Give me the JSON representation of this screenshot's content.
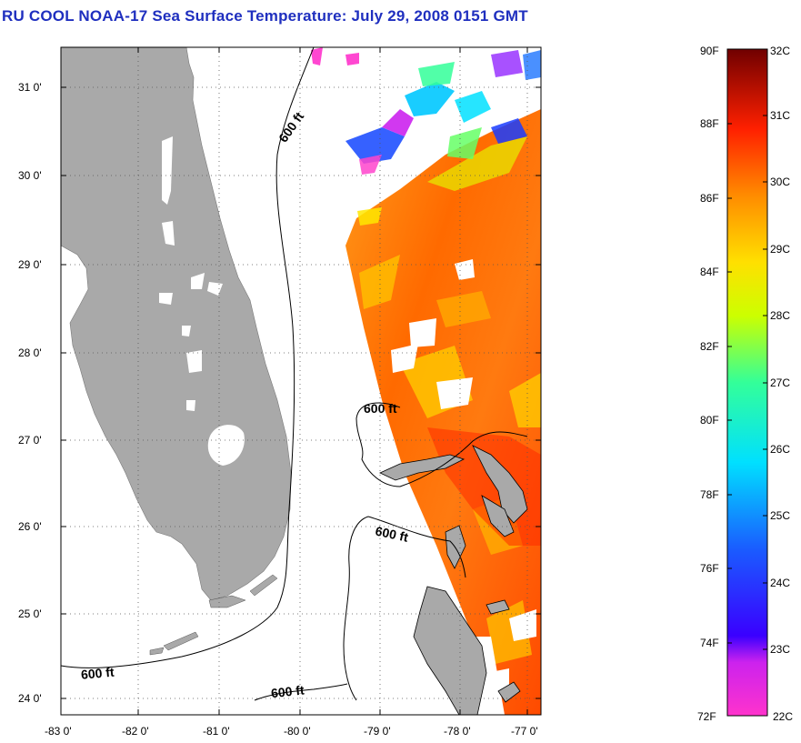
{
  "title": "RU COOL  NOAA-17  Sea Surface Temperature:  July 29, 2008 0151 GMT",
  "map": {
    "lat_ticks": [
      "31 0'",
      "30 0'",
      "29 0'",
      "28 0'",
      "27 0'",
      "26 0'",
      "25 0'",
      "24 0'"
    ],
    "lon_ticks": [
      "-83 0'",
      "-82 0'",
      "-81 0'",
      "-80 0'",
      "-79 0'",
      "-78 0'",
      "-77 0'"
    ],
    "contour_labels": [
      "600 ft",
      "600 ft",
      "600 ft",
      "600 ft",
      "600 ft"
    ],
    "land_color": "#a9a9a9",
    "contour_color": "#000000"
  },
  "colorbar": {
    "fahrenheit_labels": [
      "90F",
      "88F",
      "86F",
      "84F",
      "82F",
      "80F",
      "78F",
      "76F",
      "74F",
      "72F"
    ],
    "celsius_labels": [
      "32C",
      "31C",
      "30C",
      "29C",
      "28C",
      "27C",
      "26C",
      "25C",
      "24C",
      "23C",
      "22C"
    ],
    "colors": [
      "#ff33cc",
      "#9900ff",
      "#1a1aff",
      "#00ccff",
      "#33ff99",
      "#ccff00",
      "#ffcc00",
      "#ff8000",
      "#ff2000",
      "#800000"
    ]
  }
}
